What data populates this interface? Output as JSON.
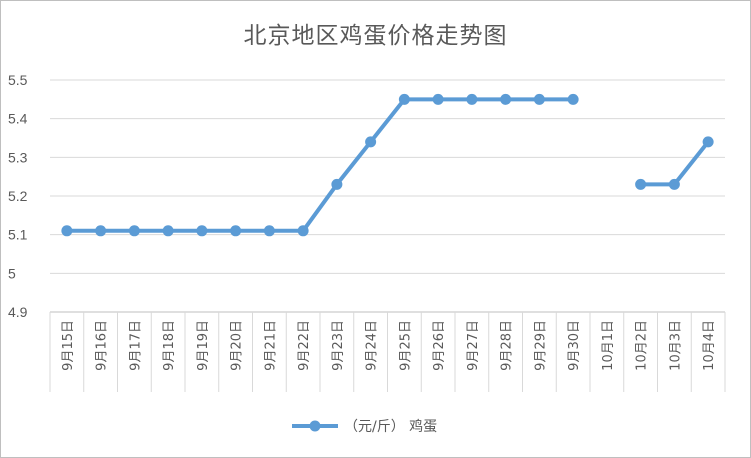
{
  "chart_data": {
    "type": "line",
    "title": "北京地区鸡蛋价格走势图",
    "categories": [
      "9月15日",
      "9月16日",
      "9月17日",
      "9月18日",
      "9月19日",
      "9月20日",
      "9月21日",
      "9月22日",
      "9月23日",
      "9月24日",
      "9月25日",
      "9月26日",
      "9月27日",
      "9月28日",
      "9月29日",
      "9月30日",
      "10月1日",
      "10月2日",
      "10月3日",
      "10月4日"
    ],
    "series": [
      {
        "name": "（元/斤） 鸡蛋",
        "values": [
          5.11,
          5.11,
          5.11,
          5.11,
          5.11,
          5.11,
          5.11,
          5.11,
          5.23,
          5.34,
          5.45,
          5.45,
          5.45,
          5.45,
          5.45,
          5.45,
          null,
          5.23,
          5.23,
          5.34
        ]
      }
    ],
    "ylim": [
      4.9,
      5.5
    ],
    "yticks": [
      "4.9",
      "5",
      "5.1",
      "5.2",
      "5.3",
      "5.4",
      "5.5"
    ],
    "xlabel": "",
    "ylabel": "",
    "grid": true,
    "legend": "bottom",
    "line_color": "#5b9bd5"
  }
}
